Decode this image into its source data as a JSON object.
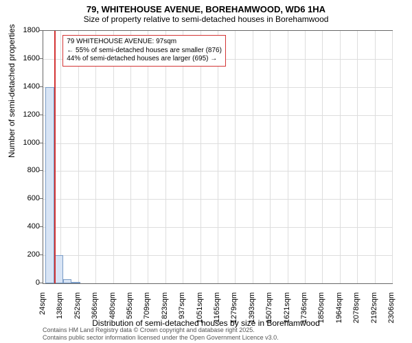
{
  "titles": {
    "main": "79, WHITEHOUSE AVENUE, BOREHAMWOOD, WD6 1HA",
    "sub": "Size of property relative to semi-detached houses in Borehamwood"
  },
  "chart": {
    "type": "histogram",
    "bar_fill": "#d8e4f5",
    "bar_stroke": "#7a9cc6",
    "border_color": "#666666",
    "grid_color": "#dddddd",
    "marker_color": "#d33333",
    "background_color": "#ffffff",
    "ylabel": "Number of semi-detached properties",
    "xlabel": "Distribution of semi-detached houses by size in Borehamwood",
    "ylim": [
      0,
      1800
    ],
    "ytick_step": 200,
    "yticks": [
      0,
      200,
      400,
      600,
      800,
      1000,
      1200,
      1400,
      1600,
      1800
    ],
    "xticks": [
      "24sqm",
      "138sqm",
      "252sqm",
      "366sqm",
      "480sqm",
      "595sqm",
      "709sqm",
      "823sqm",
      "937sqm",
      "1051sqm",
      "1165sqm",
      "1279sqm",
      "1393sqm",
      "1507sqm",
      "1621sqm",
      "1736sqm",
      "1850sqm",
      "1964sqm",
      "2078sqm",
      "2192sqm",
      "2306sqm"
    ],
    "xlim": [
      24,
      2306
    ],
    "bar_width_sqm": 57,
    "bars": [
      {
        "x_sqm": 67,
        "value": 1400
      },
      {
        "x_sqm": 124,
        "value": 200
      },
      {
        "x_sqm": 181,
        "value": 30
      },
      {
        "x_sqm": 238,
        "value": 8
      }
    ],
    "marker_x_sqm": 97,
    "annotation": {
      "line1": "79 WHITEHOUSE AVENUE: 97sqm",
      "line2": "← 55% of semi-detached houses are smaller (876)",
      "line3": "44% of semi-detached houses are larger (695) →"
    }
  },
  "footer": {
    "line1": "Contains HM Land Registry data © Crown copyright and database right 2025.",
    "line2": "Contains public sector information licensed under the Open Government Licence v3.0."
  }
}
